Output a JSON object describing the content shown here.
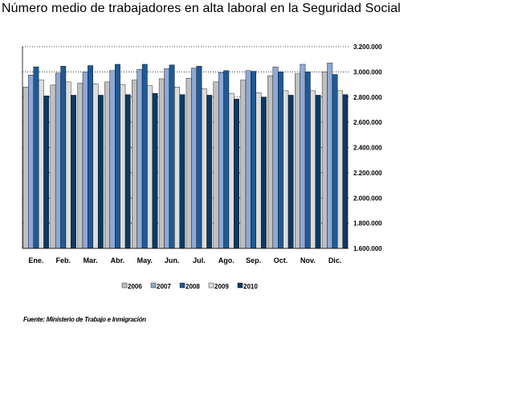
{
  "title": "Número medio de trabajadores en alta laboral en la Seguridad Social",
  "source": "Fuente: Ministerio de Trabajo e Inmigración",
  "chart_data": {
    "type": "bar",
    "categories": [
      "Ene.",
      "Feb.",
      "Mar.",
      "Abr.",
      "May.",
      "Jun.",
      "Jul.",
      "Ago.",
      "Sep.",
      "Oct.",
      "Nov.",
      "Dic."
    ],
    "series": [
      {
        "name": "2006",
        "color": "#c0c0c0",
        "values": [
          2880000,
          2895000,
          2910000,
          2920000,
          2935000,
          2945000,
          2950000,
          2920000,
          2935000,
          2970000,
          2985000,
          3000000
        ]
      },
      {
        "name": "2007",
        "color": "#8ea9d6",
        "values": [
          2975000,
          2990000,
          3000000,
          3010000,
          3020000,
          3025000,
          3030000,
          2995000,
          3010000,
          3040000,
          3060000,
          3070000
        ]
      },
      {
        "name": "2008",
        "color": "#1f5a96",
        "values": [
          3040000,
          3045000,
          3050000,
          3060000,
          3060000,
          3055000,
          3045000,
          3010000,
          3005000,
          3000000,
          3000000,
          2980000
        ]
      },
      {
        "name": "2009",
        "color": "#dcdcdc",
        "values": [
          2935000,
          2920000,
          2905000,
          2900000,
          2890000,
          2880000,
          2865000,
          2830000,
          2835000,
          2850000,
          2850000,
          2850000
        ]
      },
      {
        "name": "2010",
        "color": "#0c3a63",
        "values": [
          2810000,
          2815000,
          2815000,
          2820000,
          2830000,
          2820000,
          2815000,
          2785000,
          2800000,
          2815000,
          2815000,
          2820000
        ]
      }
    ],
    "ylim": [
      1600000,
      3200000
    ],
    "yticks": [
      "1.600.000",
      "1.800.000",
      "2.000.000",
      "2.200.000",
      "2.400.000",
      "2.600.000",
      "2.800.000",
      "3.000.000",
      "3.200.000"
    ],
    "ytick_values": [
      1600000,
      1800000,
      2000000,
      2200000,
      2400000,
      2600000,
      2800000,
      3000000,
      3200000
    ],
    "grid": true,
    "legend_position": "bottom"
  }
}
